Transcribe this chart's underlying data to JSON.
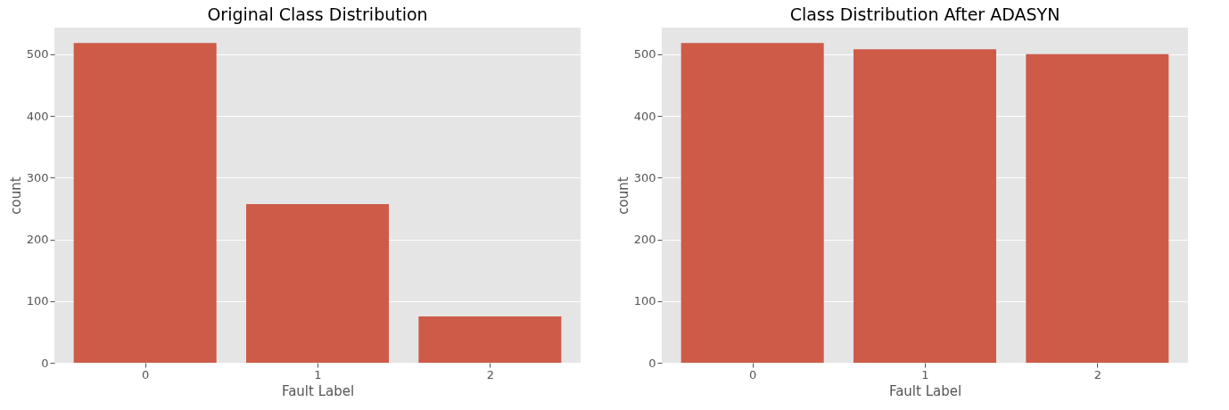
{
  "chart_data": [
    {
      "type": "bar",
      "title": "Original Class Distribution",
      "xlabel": "Fault Label",
      "ylabel": "count",
      "categories": [
        "0",
        "1",
        "2"
      ],
      "values": [
        518,
        257,
        75
      ],
      "color": "#cd5b48",
      "ylim": [
        0,
        543
      ],
      "yticks": [
        0,
        100,
        200,
        300,
        400,
        500
      ],
      "grid": "y"
    },
    {
      "type": "bar",
      "title": "Class Distribution After ADASYN",
      "xlabel": "Fault Label",
      "ylabel": "count",
      "categories": [
        "0",
        "1",
        "2"
      ],
      "values": [
        518,
        508,
        500
      ],
      "color": "#cd5b48",
      "ylim": [
        0,
        543
      ],
      "yticks": [
        0,
        100,
        200,
        300,
        400,
        500
      ],
      "grid": "y"
    }
  ]
}
